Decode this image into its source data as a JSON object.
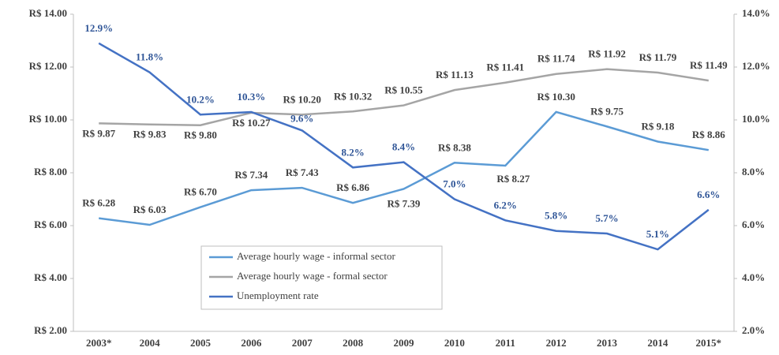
{
  "chart_data": {
    "type": "line",
    "categories": [
      "2003*",
      "2004",
      "2005",
      "2006",
      "2007",
      "2008",
      "2009",
      "2010",
      "2011",
      "2012",
      "2013",
      "2014",
      "2015*"
    ],
    "series": [
      {
        "name": "Average hourly wage - informal sector",
        "color": "#5b9bd5",
        "values": [
          6.28,
          6.03,
          6.7,
          7.34,
          7.43,
          6.86,
          7.39,
          8.38,
          8.27,
          10.3,
          9.75,
          9.18,
          8.86
        ],
        "value_labels": [
          "R$ 6.28",
          "R$ 6.03",
          "R$ 6.70",
          "R$ 7.34",
          "R$ 7.43",
          "R$ 6.86",
          "R$ 7.39",
          "R$ 8.38",
          "R$ 8.27",
          "R$ 10.30",
          "R$ 9.75",
          "R$ 9.18",
          "R$ 8.86"
        ]
      },
      {
        "name": "Average hourly wage - formal sector",
        "color": "#a5a5a5",
        "values": [
          9.87,
          9.83,
          9.8,
          10.27,
          10.2,
          10.32,
          10.55,
          11.13,
          11.41,
          11.74,
          11.92,
          11.79,
          11.49
        ],
        "value_labels": [
          "R$ 9.87",
          "R$ 9.83",
          "R$ 9.80",
          "R$ 10.27",
          "R$ 10.20",
          "R$ 10.32",
          "R$ 10.55",
          "R$ 11.13",
          "R$ 11.41",
          "R$ 11.74",
          "R$ 11.92",
          "R$ 11.79",
          "R$ 11.49"
        ]
      },
      {
        "name": "Unemployment rate",
        "color": "#4472c4",
        "axis": "y2",
        "values": [
          12.9,
          11.8,
          10.2,
          10.3,
          9.6,
          8.2,
          8.4,
          7.0,
          6.2,
          5.8,
          5.7,
          5.1,
          6.6
        ],
        "value_labels": [
          "12.9%",
          "11.8%",
          "10.2%",
          "10.3%",
          "9.6%",
          "8.2%",
          "8.4%",
          "7.0%",
          "6.2%",
          "5.8%",
          "5.7%",
          "5.1%",
          "6.6%"
        ]
      }
    ],
    "ylim": [
      2,
      14
    ],
    "yticks": [
      {
        "value": 2,
        "label": "R$ 2.00"
      },
      {
        "value": 4,
        "label": "R$ 4.00"
      },
      {
        "value": 6,
        "label": "R$ 6.00"
      },
      {
        "value": 8,
        "label": "R$ 8.00"
      },
      {
        "value": 10,
        "label": "R$ 10.00"
      },
      {
        "value": 12,
        "label": "R$ 12.00"
      },
      {
        "value": 14,
        "label": "R$ 14.00"
      }
    ],
    "y2lim": [
      2,
      14
    ],
    "y2ticks": [
      {
        "value": 2,
        "label": "2.0%"
      },
      {
        "value": 4,
        "label": "4.0%"
      },
      {
        "value": 6,
        "label": "6.0%"
      },
      {
        "value": 8,
        "label": "8.0%"
      },
      {
        "value": 10,
        "label": "10.0%"
      },
      {
        "value": 12,
        "label": "12.0%"
      },
      {
        "value": 14,
        "label": "14.0%"
      }
    ],
    "grid": false,
    "legend_position": "lower center"
  }
}
